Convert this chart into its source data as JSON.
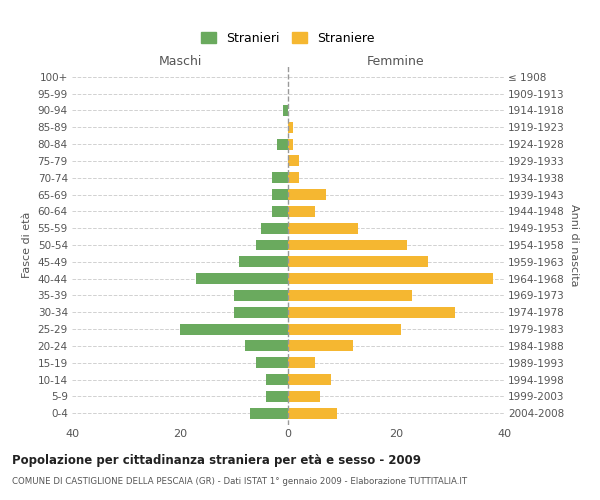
{
  "age_groups": [
    "0-4",
    "5-9",
    "10-14",
    "15-19",
    "20-24",
    "25-29",
    "30-34",
    "35-39",
    "40-44",
    "45-49",
    "50-54",
    "55-59",
    "60-64",
    "65-69",
    "70-74",
    "75-79",
    "80-84",
    "85-89",
    "90-94",
    "95-99",
    "100+"
  ],
  "birth_years": [
    "2004-2008",
    "1999-2003",
    "1994-1998",
    "1989-1993",
    "1984-1988",
    "1979-1983",
    "1974-1978",
    "1969-1973",
    "1964-1968",
    "1959-1963",
    "1954-1958",
    "1949-1953",
    "1944-1948",
    "1939-1943",
    "1934-1938",
    "1929-1933",
    "1924-1928",
    "1919-1923",
    "1914-1918",
    "1909-1913",
    "≤ 1908"
  ],
  "maschi": [
    7,
    4,
    4,
    6,
    8,
    20,
    10,
    10,
    17,
    9,
    6,
    5,
    3,
    3,
    3,
    0,
    2,
    0,
    1,
    0,
    0
  ],
  "femmine": [
    9,
    6,
    8,
    5,
    12,
    21,
    31,
    23,
    38,
    26,
    22,
    13,
    5,
    7,
    2,
    2,
    1,
    1,
    0,
    0,
    0
  ],
  "color_maschi": "#6aaa5e",
  "color_femmine": "#f5b731",
  "title": "Popolazione per cittadinanza straniera per età e sesso - 2009",
  "subtitle": "COMUNE DI CASTIGLIONE DELLA PESCAIA (GR) - Dati ISTAT 1° gennaio 2009 - Elaborazione TUTTITALIA.IT",
  "xlabel_left": "Maschi",
  "xlabel_right": "Femmine",
  "ylabel_left": "Fasce di età",
  "ylabel_right": "Anni di nascita",
  "legend_maschi": "Stranieri",
  "legend_femmine": "Straniere",
  "xlim": 40,
  "background_color": "#ffffff",
  "grid_color": "#cccccc"
}
